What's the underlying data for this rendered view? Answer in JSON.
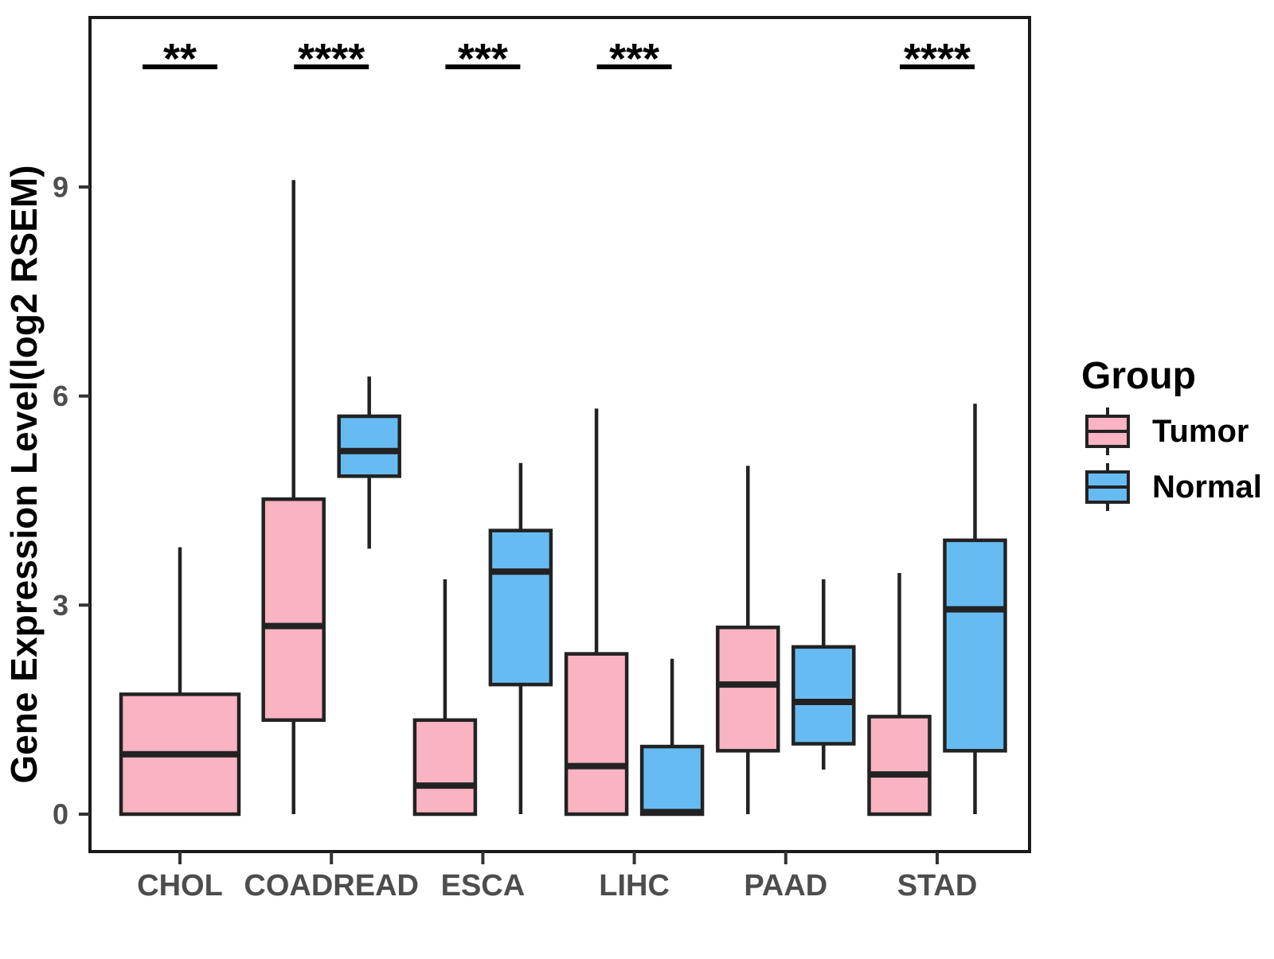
{
  "chart_data": {
    "type": "boxplot",
    "title": "",
    "ylabel": "Gene Expression Level(log2 RSEM)",
    "xlabel": "",
    "categories": [
      "CHOL",
      "COADREAD",
      "ESCA",
      "LIHC",
      "PAAD",
      "STAD"
    ],
    "yticks": [
      0,
      3,
      6,
      9
    ],
    "ylim": [
      -0.5,
      11.4
    ],
    "grid": false,
    "legend_position": "right",
    "groups": [
      {
        "name": "Tumor",
        "color": "#F9B3C3"
      },
      {
        "name": "Normal",
        "color": "#66BCF2"
      }
    ],
    "legend": {
      "title": "Group",
      "entries": [
        "Tumor",
        "Normal"
      ]
    },
    "boxes": [
      {
        "category": "CHOL",
        "group": "Tumor",
        "min": 0,
        "q1": 0,
        "median": 0.86,
        "q3": 1.72,
        "max": 3.83,
        "wide": true
      },
      {
        "category": "COADREAD",
        "group": "Tumor",
        "min": 0,
        "q1": 1.35,
        "median": 2.7,
        "q3": 4.52,
        "max": 9.1,
        "wide": false
      },
      {
        "category": "COADREAD",
        "group": "Normal",
        "min": 3.81,
        "q1": 4.85,
        "median": 5.21,
        "q3": 5.71,
        "max": 6.28,
        "wide": false
      },
      {
        "category": "ESCA",
        "group": "Tumor",
        "min": 0,
        "q1": 0,
        "median": 0.41,
        "q3": 1.35,
        "max": 3.37,
        "wide": false
      },
      {
        "category": "ESCA",
        "group": "Normal",
        "min": 0,
        "q1": 1.86,
        "median": 3.48,
        "q3": 4.07,
        "max": 5.04,
        "wide": false
      },
      {
        "category": "LIHC",
        "group": "Tumor",
        "min": 0,
        "q1": 0,
        "median": 0.69,
        "q3": 2.3,
        "max": 5.82,
        "wide": false
      },
      {
        "category": "LIHC",
        "group": "Normal",
        "min": 0,
        "q1": 0,
        "median": 0.03,
        "q3": 0.97,
        "max": 2.23,
        "wide": false
      },
      {
        "category": "PAAD",
        "group": "Tumor",
        "min": 0,
        "q1": 0.91,
        "median": 1.86,
        "q3": 2.68,
        "max": 5.0,
        "wide": false
      },
      {
        "category": "PAAD",
        "group": "Normal",
        "min": 0.64,
        "q1": 1.01,
        "median": 1.61,
        "q3": 2.4,
        "max": 3.37,
        "wide": false
      },
      {
        "category": "STAD",
        "group": "Tumor",
        "min": 0,
        "q1": 0,
        "median": 0.57,
        "q3": 1.4,
        "max": 3.46,
        "wide": false
      },
      {
        "category": "STAD",
        "group": "Normal",
        "min": 0,
        "q1": 0.91,
        "median": 2.94,
        "q3": 3.93,
        "max": 5.89,
        "wide": false
      }
    ],
    "significance": [
      {
        "category": "CHOL",
        "label": "**"
      },
      {
        "category": "COADREAD",
        "label": "****"
      },
      {
        "category": "ESCA",
        "label": "***"
      },
      {
        "category": "LIHC",
        "label": "***"
      },
      {
        "category": "STAD",
        "label": "****"
      }
    ],
    "colors": {
      "box_stroke": "#222222",
      "panel_border": "#1a1a1a",
      "tick_text": "#4d4d4d",
      "axis_title_text": "#000000",
      "significance_text": "#000000"
    }
  }
}
